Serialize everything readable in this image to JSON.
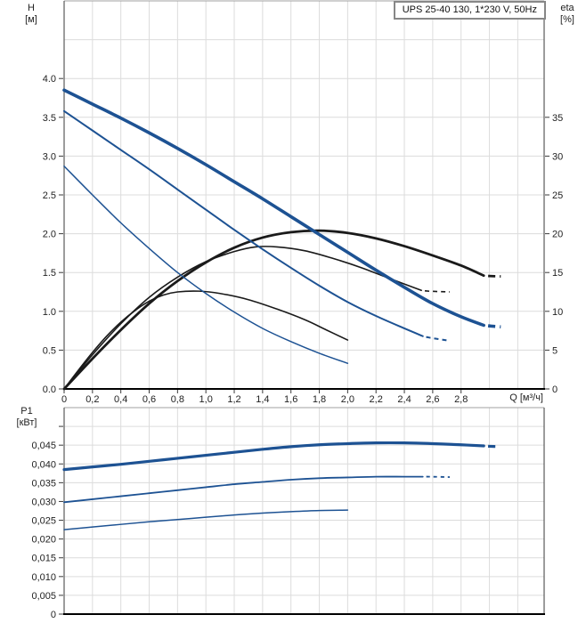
{
  "title_box": {
    "label": "UPS 25-40 130, 1*230 V, 50Hz"
  },
  "colors": {
    "blue": "#1d5293",
    "black": "#1a1a1a",
    "grid": "#dcdcdc",
    "frame": "#a0a0a0",
    "axis_dark": "#5a5a5a",
    "axis_bottom": "#000000",
    "tick": "#3a3a3a",
    "text": "#222222"
  },
  "chart_data": [
    {
      "id": "hq",
      "type": "line",
      "title": "UPS 25-40 130, 1*230 V, 50Hz",
      "x_axis": {
        "label": "Q [м³/ч]",
        "min": 0,
        "max": 3.386,
        "grid_step": 0.2,
        "grid": true,
        "ticks": [
          {
            "v": 0,
            "t": "0"
          },
          {
            "v": 0.2,
            "t": "0,2"
          },
          {
            "v": 0.4,
            "t": "0,4"
          },
          {
            "v": 0.6,
            "t": "0,6"
          },
          {
            "v": 0.8,
            "t": "0,8"
          },
          {
            "v": 1.0,
            "t": "1,0"
          },
          {
            "v": 1.2,
            "t": "1,2"
          },
          {
            "v": 1.4,
            "t": "1,4"
          },
          {
            "v": 1.6,
            "t": "1,6"
          },
          {
            "v": 1.8,
            "t": "1,8"
          },
          {
            "v": 2.0,
            "t": "2,0"
          },
          {
            "v": 2.2,
            "t": "2,2"
          },
          {
            "v": 2.4,
            "t": "2,4"
          },
          {
            "v": 2.6,
            "t": "2,6"
          },
          {
            "v": 2.8,
            "t": "2,8"
          }
        ]
      },
      "y_left": {
        "name": "H",
        "unit": "[м]",
        "min": 0,
        "max": 5,
        "grid_step": 0.5,
        "ticks": [
          {
            "v": 0,
            "t": "0.0"
          },
          {
            "v": 0.5,
            "t": "0.5"
          },
          {
            "v": 1,
            "t": "1.0"
          },
          {
            "v": 1.5,
            "t": "1.5"
          },
          {
            "v": 2,
            "t": "2.0"
          },
          {
            "v": 2.5,
            "t": "2.5"
          },
          {
            "v": 3,
            "t": "3.0"
          },
          {
            "v": 3.5,
            "t": "3.5"
          },
          {
            "v": 4,
            "t": "4.0"
          }
        ]
      },
      "y_right": {
        "name": "eta",
        "unit": "[%]",
        "min": 0,
        "max": 50,
        "ticks": [
          {
            "v": 0,
            "t": "0"
          },
          {
            "v": 5,
            "t": "5"
          },
          {
            "v": 10,
            "t": "10"
          },
          {
            "v": 15,
            "t": "15"
          },
          {
            "v": 20,
            "t": "20"
          },
          {
            "v": 25,
            "t": "25"
          },
          {
            "v": 30,
            "t": "30"
          },
          {
            "v": 35,
            "t": "35"
          }
        ]
      },
      "series": [
        {
          "name": "eta speed 1",
          "axis": "right",
          "color": "black",
          "width": 1.6,
          "points": [
            [
              0,
              0
            ],
            [
              0.1,
              2.4
            ],
            [
              0.2,
              4.7
            ],
            [
              0.3,
              6.8
            ],
            [
              0.4,
              8.6
            ],
            [
              0.5,
              10.1
            ],
            [
              0.6,
              11.3
            ],
            [
              0.7,
              12.1
            ],
            [
              0.8,
              12.5
            ],
            [
              0.95,
              12.6
            ],
            [
              1.1,
              12.3
            ],
            [
              1.3,
              11.5
            ],
            [
              1.5,
              10.3
            ],
            [
              1.7,
              8.9
            ],
            [
              1.85,
              7.6
            ],
            [
              2.0,
              6.3
            ]
          ]
        },
        {
          "name": "eta speed 2",
          "axis": "right",
          "color": "black",
          "width": 1.6,
          "points": [
            [
              0,
              0
            ],
            [
              0.2,
              4.4
            ],
            [
              0.4,
              8.4
            ],
            [
              0.6,
              11.8
            ],
            [
              0.8,
              14.4
            ],
            [
              1.0,
              16.4
            ],
            [
              1.2,
              17.7
            ],
            [
              1.35,
              18.3
            ],
            [
              1.5,
              18.3
            ],
            [
              1.7,
              17.8
            ],
            [
              1.9,
              16.8
            ],
            [
              2.1,
              15.6
            ],
            [
              2.3,
              14.2
            ],
            [
              2.52,
              12.7
            ]
          ],
          "dash_points": [
            [
              2.57,
              12.6
            ],
            [
              2.72,
              12.5
            ]
          ],
          "dash_pattern": "5 4"
        },
        {
          "name": "eta speed 3",
          "axis": "right",
          "color": "black",
          "width": 2.8,
          "points": [
            [
              0,
              0
            ],
            [
              0.2,
              3.9
            ],
            [
              0.4,
              7.6
            ],
            [
              0.6,
              11.0
            ],
            [
              0.8,
              13.9
            ],
            [
              1.0,
              16.3
            ],
            [
              1.2,
              18.2
            ],
            [
              1.4,
              19.5
            ],
            [
              1.6,
              20.2
            ],
            [
              1.8,
              20.4
            ],
            [
              2.0,
              20.1
            ],
            [
              2.2,
              19.4
            ],
            [
              2.4,
              18.4
            ],
            [
              2.6,
              17.2
            ],
            [
              2.8,
              15.9
            ],
            [
              2.96,
              14.6
            ]
          ],
          "dash_points": [
            [
              3.0,
              14.55
            ],
            [
              3.08,
              14.5
            ]
          ],
          "dash_pattern": "8 5"
        },
        {
          "name": "H speed 1",
          "axis": "left",
          "color": "blue",
          "width": 1.5,
          "points": [
            [
              0,
              2.87
            ],
            [
              0.2,
              2.5
            ],
            [
              0.4,
              2.14
            ],
            [
              0.6,
              1.81
            ],
            [
              0.8,
              1.5
            ],
            [
              1.0,
              1.23
            ],
            [
              1.2,
              0.99
            ],
            [
              1.4,
              0.78
            ],
            [
              1.6,
              0.61
            ],
            [
              1.8,
              0.46
            ],
            [
              2.0,
              0.33
            ]
          ]
        },
        {
          "name": "H speed 2",
          "axis": "left",
          "color": "blue",
          "width": 2.0,
          "points": [
            [
              0,
              3.58
            ],
            [
              0.2,
              3.33
            ],
            [
              0.4,
              3.08
            ],
            [
              0.6,
              2.83
            ],
            [
              0.8,
              2.57
            ],
            [
              1.0,
              2.31
            ],
            [
              1.2,
              2.05
            ],
            [
              1.4,
              1.8
            ],
            [
              1.6,
              1.56
            ],
            [
              1.8,
              1.33
            ],
            [
              2.0,
              1.12
            ],
            [
              2.2,
              0.94
            ],
            [
              2.4,
              0.78
            ],
            [
              2.53,
              0.68
            ]
          ],
          "dash_points": [
            [
              2.58,
              0.66
            ],
            [
              2.72,
              0.62
            ]
          ],
          "dash_pattern": "5 4"
        },
        {
          "name": "H speed 3",
          "axis": "left",
          "color": "blue",
          "width": 3.6,
          "points": [
            [
              0,
              3.85
            ],
            [
              0.2,
              3.67
            ],
            [
              0.4,
              3.49
            ],
            [
              0.6,
              3.3
            ],
            [
              0.8,
              3.1
            ],
            [
              1.0,
              2.89
            ],
            [
              1.2,
              2.67
            ],
            [
              1.4,
              2.45
            ],
            [
              1.6,
              2.22
            ],
            [
              1.8,
              1.99
            ],
            [
              2.0,
              1.76
            ],
            [
              2.2,
              1.53
            ],
            [
              2.4,
              1.31
            ],
            [
              2.6,
              1.1
            ],
            [
              2.8,
              0.93
            ],
            [
              2.96,
              0.82
            ]
          ],
          "dash_points": [
            [
              3.01,
              0.81
            ],
            [
              3.08,
              0.8
            ]
          ],
          "dash_pattern": "8 5"
        }
      ]
    },
    {
      "id": "p1",
      "type": "line",
      "x_axis": {
        "min": 0,
        "max": 3.386,
        "grid_step": 0.2,
        "grid": true,
        "ticks": []
      },
      "y_left": {
        "name": "P1",
        "unit": "[кВт]",
        "min": 0,
        "max": 0.055,
        "grid_step": 0.005,
        "ticks": [
          {
            "v": 0,
            "t": "0"
          },
          {
            "v": 0.005,
            "t": "0,005"
          },
          {
            "v": 0.01,
            "t": "0,010"
          },
          {
            "v": 0.015,
            "t": "0,015"
          },
          {
            "v": 0.02,
            "t": "0,020"
          },
          {
            "v": 0.025,
            "t": "0,025"
          },
          {
            "v": 0.03,
            "t": "0,030"
          },
          {
            "v": 0.035,
            "t": "0,035"
          },
          {
            "v": 0.04,
            "t": "0,040"
          },
          {
            "v": 0.045,
            "t": "0,045"
          },
          {
            "v": 0.05,
            "t": ""
          }
        ]
      },
      "series": [
        {
          "name": "P1 speed 1",
          "axis": "left",
          "color": "blue",
          "width": 1.5,
          "points": [
            [
              0,
              0.0225
            ],
            [
              0.2,
              0.0232
            ],
            [
              0.4,
              0.0239
            ],
            [
              0.6,
              0.0246
            ],
            [
              0.8,
              0.0252
            ],
            [
              1.0,
              0.0258
            ],
            [
              1.2,
              0.0264
            ],
            [
              1.4,
              0.0269
            ],
            [
              1.6,
              0.0273
            ],
            [
              1.8,
              0.0276
            ],
            [
              2.0,
              0.0277
            ]
          ]
        },
        {
          "name": "P1 speed 2",
          "axis": "left",
          "color": "blue",
          "width": 1.8,
          "points": [
            [
              0,
              0.0298
            ],
            [
              0.2,
              0.0306
            ],
            [
              0.4,
              0.0314
            ],
            [
              0.6,
              0.0322
            ],
            [
              0.8,
              0.033
            ],
            [
              1.0,
              0.0338
            ],
            [
              1.2,
              0.0346
            ],
            [
              1.4,
              0.0352
            ],
            [
              1.6,
              0.0358
            ],
            [
              1.8,
              0.0362
            ],
            [
              2.0,
              0.0364
            ],
            [
              2.2,
              0.0366
            ],
            [
              2.4,
              0.0366
            ],
            [
              2.53,
              0.0366
            ]
          ],
          "dash_points": [
            [
              2.58,
              0.0366
            ],
            [
              2.72,
              0.0365
            ]
          ],
          "dash_pattern": "4 4"
        },
        {
          "name": "P1 speed 3",
          "axis": "left",
          "color": "blue",
          "width": 3.2,
          "points": [
            [
              0,
              0.0385
            ],
            [
              0.2,
              0.0392
            ],
            [
              0.4,
              0.0399
            ],
            [
              0.6,
              0.0407
            ],
            [
              0.8,
              0.0415
            ],
            [
              1.0,
              0.0423
            ],
            [
              1.2,
              0.0431
            ],
            [
              1.4,
              0.0439
            ],
            [
              1.6,
              0.0446
            ],
            [
              1.8,
              0.0451
            ],
            [
              2.0,
              0.0454
            ],
            [
              2.2,
              0.0456
            ],
            [
              2.4,
              0.0456
            ],
            [
              2.6,
              0.0454
            ],
            [
              2.8,
              0.0451
            ],
            [
              2.96,
              0.0448
            ]
          ],
          "dash_points": [
            [
              3.0,
              0.0447
            ],
            [
              3.07,
              0.0446
            ]
          ],
          "dash_pattern": "8 5"
        }
      ]
    }
  ]
}
